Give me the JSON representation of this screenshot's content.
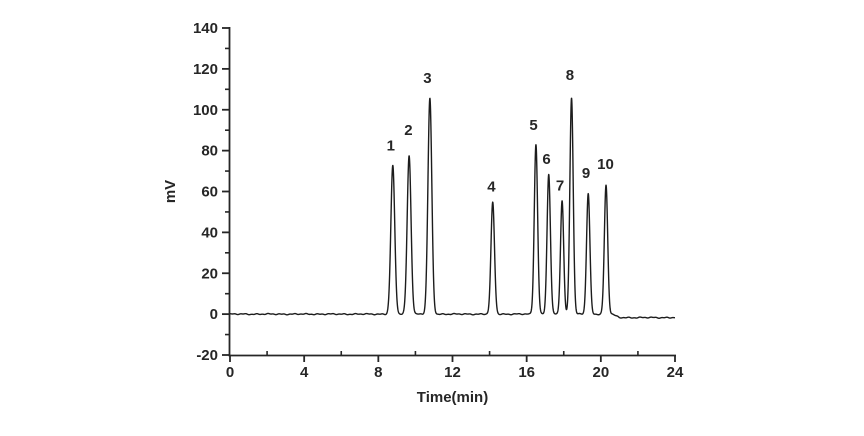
{
  "figure": {
    "background_color": "#ffffff",
    "trace_color": "#1c1c1c",
    "axis_color": "#262626",
    "text_color": "#262626"
  },
  "chart_data": {
    "type": "line",
    "subtype": "chromatogram",
    "title": "",
    "xlabel": "Time(min)",
    "ylabel": "mV",
    "xlim": [
      0,
      24
    ],
    "ylim": [
      -20,
      140
    ],
    "x_major_ticks": [
      0,
      4,
      8,
      12,
      16,
      20,
      24
    ],
    "x_minor_ticks": [
      2,
      6,
      10,
      14,
      18,
      22
    ],
    "y_major_ticks": [
      -20,
      0,
      20,
      40,
      60,
      80,
      100,
      120,
      140
    ],
    "y_minor_ticks": [
      -10,
      10,
      30,
      50,
      70,
      90,
      110,
      130
    ],
    "grid": false,
    "legend": null,
    "baseline": {
      "level_mV": 0,
      "noise_amplitude_mV": 0.35,
      "end_offset_mV": -1.7,
      "end_offset_start_min": 20.6
    },
    "peaks": [
      {
        "label": "1",
        "retention_time_min": 8.78,
        "height_mV": 72.5,
        "sigma_min": 0.105,
        "label_pos": [
          8.67,
          82.5
        ]
      },
      {
        "label": "2",
        "retention_time_min": 9.66,
        "height_mV": 77.5,
        "sigma_min": 0.105,
        "label_pos": [
          9.62,
          90
        ]
      },
      {
        "label": "3",
        "retention_time_min": 10.78,
        "height_mV": 105.5,
        "sigma_min": 0.105,
        "label_pos": [
          10.65,
          115.5
        ]
      },
      {
        "label": "4",
        "retention_time_min": 14.17,
        "height_mV": 54.5,
        "sigma_min": 0.095,
        "label_pos": [
          14.1,
          62.5
        ]
      },
      {
        "label": "5",
        "retention_time_min": 16.5,
        "height_mV": 83,
        "sigma_min": 0.09,
        "label_pos": [
          16.37,
          92.5
        ]
      },
      {
        "label": "6",
        "retention_time_min": 17.19,
        "height_mV": 68.5,
        "sigma_min": 0.09,
        "label_pos": [
          17.07,
          76
        ]
      },
      {
        "label": "7",
        "retention_time_min": 17.91,
        "height_mV": 55.5,
        "sigma_min": 0.085,
        "label_pos": [
          17.8,
          63
        ]
      },
      {
        "label": "8",
        "retention_time_min": 18.42,
        "height_mV": 106,
        "sigma_min": 0.09,
        "label_pos": [
          18.33,
          117
        ]
      },
      {
        "label": "9",
        "retention_time_min": 19.32,
        "height_mV": 59,
        "sigma_min": 0.09,
        "label_pos": [
          19.2,
          69
        ]
      },
      {
        "label": "10",
        "retention_time_min": 20.28,
        "height_mV": 63,
        "sigma_min": 0.09,
        "label_pos": [
          20.25,
          73.5
        ]
      }
    ]
  }
}
